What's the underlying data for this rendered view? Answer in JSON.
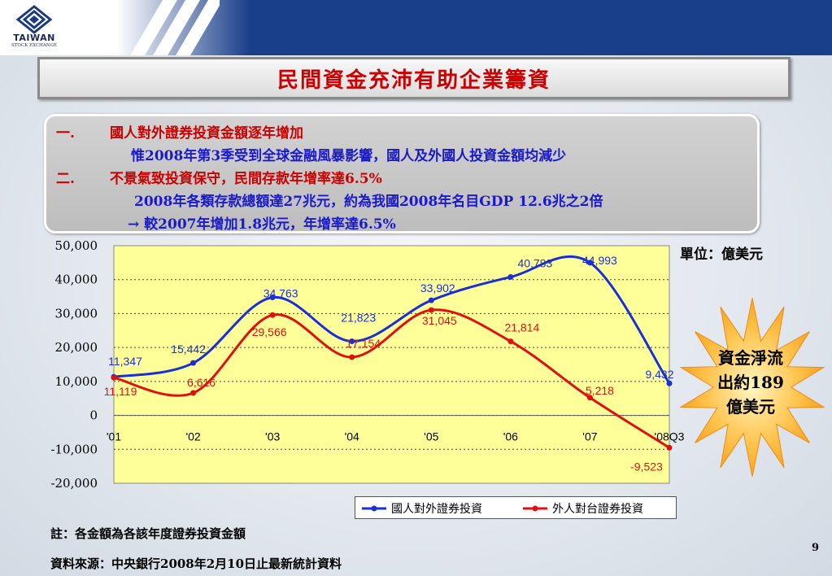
{
  "logo": {
    "line1": "TAIWAN",
    "line2": "STOCK EXCHANGE"
  },
  "title": "民間資金充沛有助企業籌資",
  "bullets": [
    {
      "marker": "一.",
      "text": "國人對外證券投資金額逐年增加"
    },
    {
      "marker": "",
      "text": "惟2008年第3季受到全球金融風暴影響，國人及外國人投資金額均減少"
    },
    {
      "marker": "二.",
      "text": "不景氣致投資保守，民間存款年增率達6.5%"
    },
    {
      "marker": "",
      "text": "2008年各類存款總額達27兆元，約為我國2008年名目GDP 12.6兆之2倍"
    },
    {
      "marker": "",
      "text": "→ 較2007年增加1.8兆元，年增率達6.5%"
    }
  ],
  "unit_label": "單位：億美元",
  "callout": {
    "line1": "資金淨流",
    "line2": "出約189",
    "line3": "億美元"
  },
  "colors": {
    "title": "#cc0000",
    "series_domestic": "#1a2fd6",
    "series_foreign": "#e01010",
    "plot_bg": "#ffff99"
  },
  "chart_data": {
    "type": "line",
    "categories": [
      "'01",
      "'02",
      "'03",
      "'04",
      "'05",
      "'06",
      "'07",
      "'08Q3"
    ],
    "ylim": [
      -20000,
      50000
    ],
    "yticks": [
      "50,000",
      "40,000",
      "30,000",
      "20,000",
      "10,000",
      "0",
      "-10,000",
      "-20,000"
    ],
    "ytick_values": [
      50000,
      40000,
      30000,
      20000,
      10000,
      0,
      -10000,
      -20000
    ],
    "grid": true,
    "legend_position": "bottom",
    "series": [
      {
        "name": "國人對外證券投資",
        "values": [
          11347,
          15442,
          34763,
          21823,
          33902,
          40783,
          44993,
          9432
        ],
        "labels": [
          "11,347",
          "15,442",
          "34,763",
          "21,823",
          "33,902",
          "40,783",
          "44,993",
          "9,432"
        ]
      },
      {
        "name": "外人對台證券投資",
        "values": [
          11119,
          6616,
          29566,
          17154,
          31045,
          21814,
          5218,
          -9523
        ],
        "labels": [
          "11,119",
          "6,616",
          "29,566",
          "17,154",
          "31,045",
          "21,814",
          "5,218",
          "-9,523"
        ]
      }
    ]
  },
  "notes": {
    "note": "註：各金額為各該年度證券投資金額",
    "source": "資料來源：中央銀行2008年2月10日止最新統計資料"
  },
  "page_number": "9"
}
